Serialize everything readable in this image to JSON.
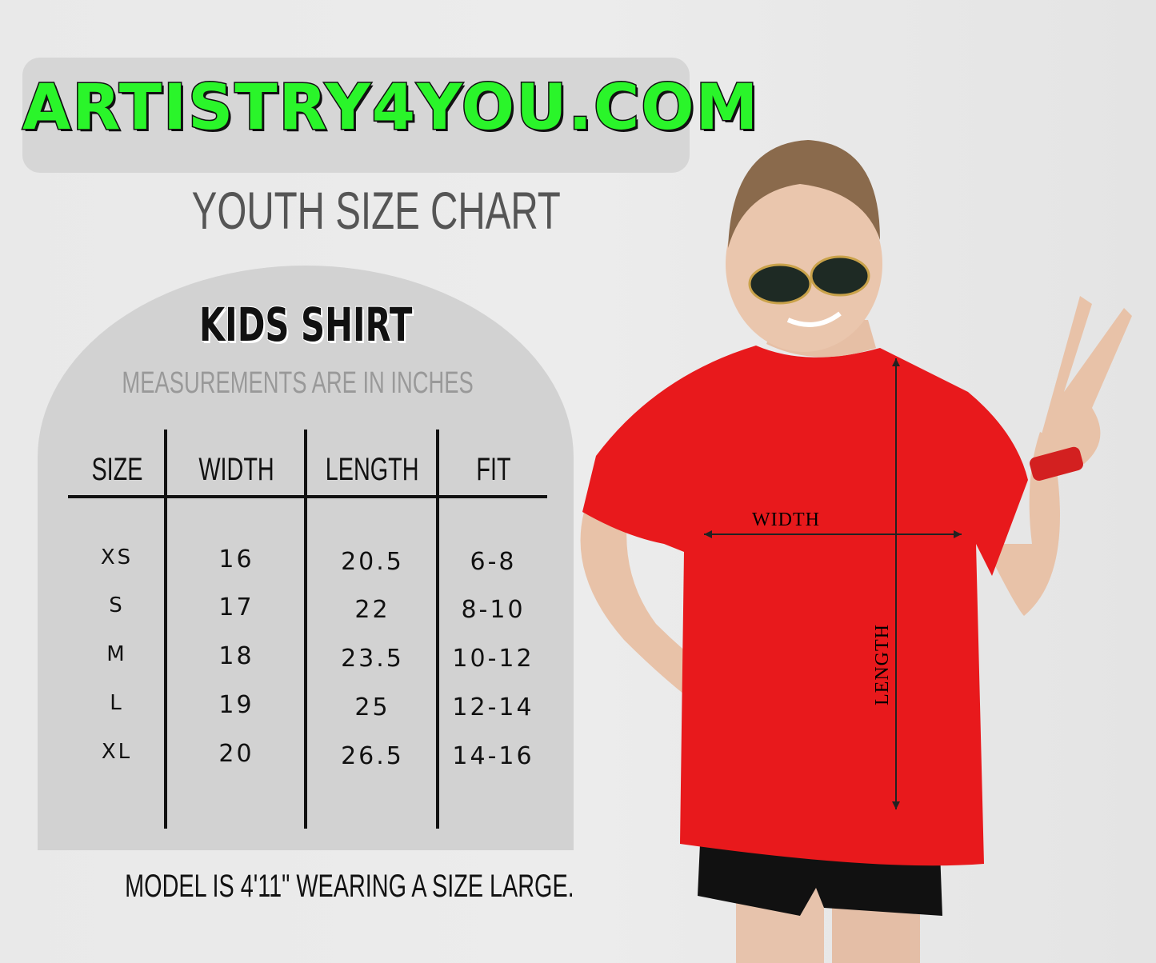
{
  "logo": {
    "text": "ARTISTRY4YOU.COM",
    "color": "#2af52a"
  },
  "title": "YOUTH SIZE CHART",
  "panel": {
    "heading": "KIDS SHIRT",
    "subheading": "MEASUREMENTS ARE IN INCHES",
    "columns": [
      "SIZE",
      "WIDTH",
      "LENGTH",
      "FIT"
    ],
    "rows": [
      [
        "XS",
        "16",
        "20.5",
        "6-8"
      ],
      [
        "S",
        "17",
        "22",
        "8-10"
      ],
      [
        "M",
        "18",
        "23.5",
        "10-12"
      ],
      [
        "L",
        "19",
        "25",
        "12-14"
      ],
      [
        "XL",
        "20",
        "26.5",
        "14-16"
      ]
    ]
  },
  "footer": "MODEL IS 4'11\" WEARING A SIZE LARGE.",
  "photo": {
    "width_label": "WIDTH",
    "length_label": "LENGTH",
    "shirt_color": "#e8191c"
  }
}
